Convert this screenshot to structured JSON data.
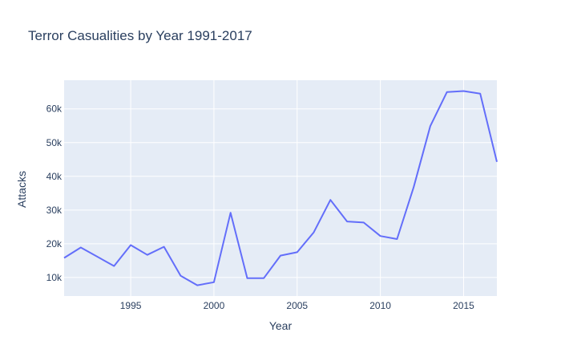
{
  "chart_data": {
    "type": "line",
    "title": "Terror Casualities by Year 1991-2017",
    "xlabel": "Year",
    "ylabel": "Attacks",
    "xlim": [
      1991,
      2017
    ],
    "ylim": [
      4500,
      68500
    ],
    "x_ticks": [
      1995,
      2000,
      2005,
      2010,
      2015
    ],
    "x_tick_labels": [
      "1995",
      "2000",
      "2005",
      "2010",
      "2015"
    ],
    "y_ticks": [
      10000,
      20000,
      30000,
      40000,
      50000,
      60000
    ],
    "y_tick_labels": [
      "10k",
      "20k",
      "30k",
      "40k",
      "50k",
      "60k"
    ],
    "grid": true,
    "colors": {
      "line": "#636efa",
      "plot_bg": "#e5ecf6",
      "grid": "#ffffff",
      "text": "#2a3f5f"
    },
    "series": [
      {
        "x": [
          1991,
          1992,
          1994,
          1995,
          1996,
          1997,
          1998,
          1999,
          2000,
          2001,
          2002,
          2003,
          2004,
          2005,
          2006,
          2007,
          2008,
          2009,
          2010,
          2011,
          2012,
          2013,
          2014,
          2015,
          2016,
          2017
        ],
        "y": [
          15800,
          18900,
          13400,
          19600,
          16700,
          19100,
          10500,
          7700,
          8600,
          29200,
          9800,
          9800,
          16500,
          17500,
          23400,
          33000,
          26600,
          26300,
          22300,
          21400,
          36800,
          54900,
          65000,
          65300,
          64500,
          44300
        ]
      }
    ]
  }
}
